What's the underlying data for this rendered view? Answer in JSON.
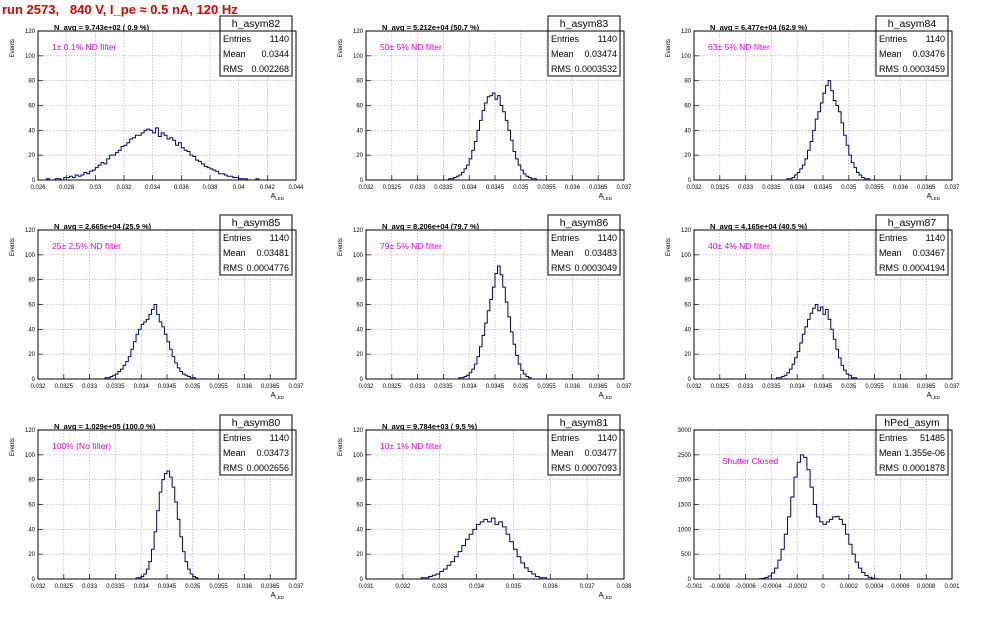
{
  "title": "run 2573,   840 V, I_pe ≈ 0.5 nA, 120 Hz",
  "colors": {
    "histogram": "#00007f",
    "filter_text": "#e600e6",
    "title": "#e00000",
    "grid": "#aaaaaa"
  },
  "chart_data": [
    {
      "type": "bar",
      "name": "h_asym82",
      "ylabel": "Events",
      "xlabel": "A_{LED}",
      "xlim": [
        0.026,
        0.044
      ],
      "ylim": [
        0,
        120
      ],
      "xticks": [
        "0.026",
        "0.028",
        "0.03",
        "0.032",
        "0.034",
        "0.036",
        "0.038",
        "0.04",
        "0.042",
        "0.044"
      ],
      "yticks": [
        "0",
        "20",
        "40",
        "60",
        "80",
        "100",
        "120"
      ],
      "grid": true,
      "stats": {
        "entries_label": "Entries",
        "entries": "1140",
        "mean_label": "Mean",
        "mean": "0.0344",
        "rms_label": "RMS",
        "rms": "0.002268"
      },
      "n_avg": "N_avg = 9.743e+02 ( 0.9 %)",
      "filter": "1± 0.1% ND filter",
      "bins": {
        "x0": 0.026,
        "width": 0.0002,
        "values": [
          0,
          0,
          0,
          1,
          0,
          0,
          1,
          1,
          0,
          2,
          2,
          3,
          2,
          4,
          3,
          4,
          6,
          5,
          7,
          8,
          10,
          12,
          14,
          13,
          17,
          20,
          20,
          22,
          24,
          27,
          28,
          30,
          33,
          34,
          36,
          36,
          38,
          40,
          41,
          40,
          38,
          42,
          35,
          38,
          36,
          33,
          34,
          32,
          28,
          30,
          26,
          24,
          23,
          20,
          19,
          16,
          15,
          13,
          11,
          10,
          9,
          8,
          7,
          5,
          5,
          4,
          3,
          3,
          2,
          2,
          1,
          1,
          1,
          0,
          0,
          0,
          1,
          0,
          0,
          0,
          0,
          0,
          0,
          0,
          0,
          0,
          0,
          0,
          0,
          0
        ]
      }
    },
    {
      "type": "bar",
      "name": "h_asym83",
      "ylabel": "Events",
      "xlabel": "A_{LED}",
      "xlim": [
        0.032,
        0.037
      ],
      "ylim": [
        0,
        120
      ],
      "xticks": [
        "0.032",
        "0.0325",
        "0.033",
        "0.0335",
        "0.034",
        "0.0345",
        "0.035",
        "0.0355",
        "0.036",
        "0.0365",
        "0.037"
      ],
      "yticks": [
        "0",
        "20",
        "40",
        "60",
        "80",
        "100",
        "120"
      ],
      "grid": true,
      "stats": {
        "entries_label": "Entries",
        "entries": "1140",
        "mean_label": "Mean",
        "mean": "0.03474",
        "rms_label": "RMS",
        "rms": "0.0003532"
      },
      "n_avg": "N_avg = 5.212e+04 (50.7 %)",
      "filter": "50± 5% ND filter",
      "bins": {
        "x0": 0.0336,
        "width": 5e-05,
        "values": [
          1,
          1,
          2,
          3,
          4,
          6,
          9,
          12,
          17,
          24,
          31,
          40,
          48,
          56,
          62,
          67,
          68,
          70,
          65,
          68,
          60,
          55,
          48,
          40,
          32,
          23,
          17,
          12,
          8,
          5,
          3,
          2,
          1,
          1,
          0
        ]
      }
    },
    {
      "type": "bar",
      "name": "h_asym84",
      "ylabel": "Events",
      "xlabel": "A_{LED}",
      "xlim": [
        0.032,
        0.037
      ],
      "ylim": [
        0,
        120
      ],
      "xticks": [
        "0.032",
        "0.0325",
        "0.033",
        "0.0335",
        "0.034",
        "0.0345",
        "0.035",
        "0.0355",
        "0.036",
        "0.0365",
        "0.037"
      ],
      "yticks": [
        "0",
        "20",
        "40",
        "60",
        "80",
        "100",
        "120"
      ],
      "grid": true,
      "stats": {
        "entries_label": "Entries",
        "entries": "1140",
        "mean_label": "Mean",
        "mean": "0.03476",
        "rms_label": "RMS",
        "rms": "0.0003459"
      },
      "n_avg": "N_avg = 6.477e+04 (62.9 %)",
      "filter": "63± 5% ND filter",
      "bins": {
        "x0": 0.0338,
        "width": 5e-05,
        "values": [
          1,
          1,
          2,
          4,
          6,
          9,
          12,
          17,
          24,
          31,
          40,
          49,
          55,
          62,
          70,
          76,
          80,
          72,
          64,
          60,
          55,
          46,
          36,
          28,
          20,
          14,
          10,
          6,
          4,
          2,
          1,
          1,
          0
        ]
      }
    },
    {
      "type": "bar",
      "name": "h_asym85",
      "ylabel": "Events",
      "xlabel": "A_{LED}",
      "xlim": [
        0.032,
        0.037
      ],
      "ylim": [
        0,
        120
      ],
      "xticks": [
        "0.032",
        "0.0325",
        "0.033",
        "0.0335",
        "0.034",
        "0.0345",
        "0.035",
        "0.0355",
        "0.036",
        "0.0365",
        "0.037"
      ],
      "yticks": [
        "0",
        "20",
        "40",
        "60",
        "80",
        "100",
        "120"
      ],
      "grid": true,
      "stats": {
        "entries_label": "Entries",
        "entries": "1140",
        "mean_label": "Mean",
        "mean": "0.03481",
        "rms_label": "RMS",
        "rms": "0.0004776"
      },
      "n_avg": "N_avg = 2.665e+04 (25.9 %)",
      "filter": "25± 2.5% ND filter",
      "bins": {
        "x0": 0.0333,
        "width": 5e-05,
        "values": [
          1,
          1,
          2,
          3,
          4,
          6,
          8,
          11,
          14,
          18,
          24,
          30,
          36,
          40,
          44,
          46,
          48,
          52,
          56,
          60,
          52,
          46,
          42,
          36,
          30,
          24,
          18,
          13,
          9,
          6,
          4,
          3,
          2,
          1,
          1,
          0
        ]
      }
    },
    {
      "type": "bar",
      "name": "h_asym86",
      "ylabel": "Events",
      "xlabel": "A_{LED}",
      "xlim": [
        0.032,
        0.037
      ],
      "ylim": [
        0,
        120
      ],
      "xticks": [
        "0.032",
        "0.0325",
        "0.033",
        "0.0335",
        "0.034",
        "0.0345",
        "0.035",
        "0.0355",
        "0.036",
        "0.0365",
        "0.037"
      ],
      "yticks": [
        "0",
        "20",
        "40",
        "60",
        "80",
        "100",
        "120"
      ],
      "grid": true,
      "stats": {
        "entries_label": "Entries",
        "entries": "1140",
        "mean_label": "Mean",
        "mean": "0.03483",
        "rms_label": "RMS",
        "rms": "0.0003049"
      },
      "n_avg": "N_avg = 8.206e+04 (79.7 %)",
      "filter": "79± 5% ND filter",
      "bins": {
        "x0": 0.0338,
        "width": 5e-05,
        "values": [
          1,
          1,
          2,
          3,
          5,
          8,
          12,
          18,
          26,
          35,
          45,
          55,
          64,
          74,
          85,
          91,
          84,
          74,
          62,
          50,
          38,
          28,
          19,
          12,
          7,
          4,
          2,
          1,
          0
        ]
      }
    },
    {
      "type": "bar",
      "name": "h_asym87",
      "ylabel": "Events",
      "xlabel": "A_{LED}",
      "xlim": [
        0.032,
        0.037
      ],
      "ylim": [
        0,
        120
      ],
      "xticks": [
        "0.032",
        "0.0325",
        "0.033",
        "0.0335",
        "0.034",
        "0.0345",
        "0.035",
        "0.0355",
        "0.036",
        "0.0365",
        "0.037"
      ],
      "yticks": [
        "0",
        "20",
        "40",
        "60",
        "80",
        "100",
        "120"
      ],
      "grid": true,
      "stats": {
        "entries_label": "Entries",
        "entries": "1140",
        "mean_label": "Mean",
        "mean": "0.03467",
        "rms_label": "RMS",
        "rms": "0.0004194"
      },
      "n_avg": "N_avg = 4.165e+04 (40.5 %)",
      "filter": "40± 4% ND filter",
      "bins": {
        "x0": 0.0336,
        "width": 5e-05,
        "values": [
          1,
          1,
          2,
          3,
          5,
          8,
          12,
          17,
          22,
          29,
          36,
          42,
          48,
          53,
          57,
          60,
          55,
          58,
          52,
          56,
          48,
          40,
          32,
          24,
          17,
          11,
          7,
          4,
          3,
          1,
          1,
          0
        ]
      }
    },
    {
      "type": "bar",
      "name": "h_asym80",
      "ylabel": "Events",
      "xlabel": "A_{LED}",
      "xlim": [
        0.032,
        0.037
      ],
      "ylim": [
        0,
        120
      ],
      "xticks": [
        "0.032",
        "0.0325",
        "0.033",
        "0.0335",
        "0.034",
        "0.0345",
        "0.035",
        "0.0355",
        "0.036",
        "0.0365",
        "0.037"
      ],
      "yticks": [
        "0",
        "20",
        "40",
        "60",
        "80",
        "100",
        "120"
      ],
      "grid": true,
      "stats": {
        "entries_label": "Entries",
        "entries": "1140",
        "mean_label": "Mean",
        "mean": "0.03473",
        "rms_label": "RMS",
        "rms": "0.0002656"
      },
      "n_avg": "N_avg = 1.029e+05 (100.0 %)",
      "filter": "100% (No filter)",
      "bins": {
        "x0": 0.0339,
        "width": 5e-05,
        "values": [
          1,
          1,
          2,
          4,
          8,
          14,
          24,
          38,
          55,
          70,
          80,
          85,
          87,
          82,
          74,
          62,
          48,
          34,
          22,
          14,
          8,
          4,
          2,
          1,
          0
        ]
      }
    },
    {
      "type": "bar",
      "name": "h_asym81",
      "ylabel": "Events",
      "xlabel": "A_{LED}",
      "xlim": [
        0.031,
        0.038
      ],
      "ylim": [
        0,
        120
      ],
      "xticks": [
        "0.031",
        "0.032",
        "0.033",
        "0.034",
        "0.035",
        "0.036",
        "0.037",
        "0.038"
      ],
      "yticks": [
        "0",
        "20",
        "40",
        "60",
        "80",
        "100",
        "120"
      ],
      "grid": true,
      "stats": {
        "entries_label": "Entries",
        "entries": "1140",
        "mean_label": "Mean",
        "mean": "0.03477",
        "rms_label": "RMS",
        "rms": "0.0007093"
      },
      "n_avg": "N_avg = 9.784e+03 ( 9.5 %)",
      "filter": "10± 1% ND filter",
      "bins": {
        "x0": 0.0325,
        "width": 0.0001,
        "values": [
          1,
          1,
          2,
          3,
          4,
          6,
          8,
          11,
          14,
          18,
          22,
          27,
          32,
          36,
          40,
          44,
          46,
          48,
          46,
          49,
          44,
          46,
          42,
          36,
          30,
          24,
          18,
          13,
          9,
          6,
          4,
          2,
          1,
          1,
          0
        ]
      }
    },
    {
      "type": "bar",
      "name": "hPed_asym",
      "ylabel": "",
      "xlabel": "",
      "xlim": [
        -0.001,
        0.001
      ],
      "ylim": [
        0,
        3000
      ],
      "xticks": [
        "-0.001",
        "-0.0008",
        "-0.0006",
        "-0.0004",
        "-0.0002",
        "0",
        "0.0002",
        "0.0004",
        "0.0006",
        "0.0008",
        "0.001"
      ],
      "yticks": [
        "0",
        "500",
        "1000",
        "1500",
        "2000",
        "2500",
        "3000"
      ],
      "grid": true,
      "stats": {
        "entries_label": "Entries",
        "entries": "51485",
        "mean_label": "Mean",
        "mean": "1.355e-06",
        "rms_label": "RMS",
        "rms": "0.0001878"
      },
      "n_avg": "",
      "filter": "Shutter Closed",
      "bins": {
        "x0": -0.0005,
        "width": 2.5e-05,
        "values": [
          5,
          10,
          30,
          60,
          120,
          220,
          380,
          600,
          900,
          1250,
          1650,
          2050,
          2350,
          2500,
          2450,
          2200,
          1850,
          1500,
          1250,
          1150,
          1100,
          1150,
          1200,
          1250,
          1260,
          1200,
          1100,
          900,
          700,
          500,
          340,
          220,
          130,
          70,
          35,
          15,
          5,
          0
        ]
      }
    }
  ]
}
